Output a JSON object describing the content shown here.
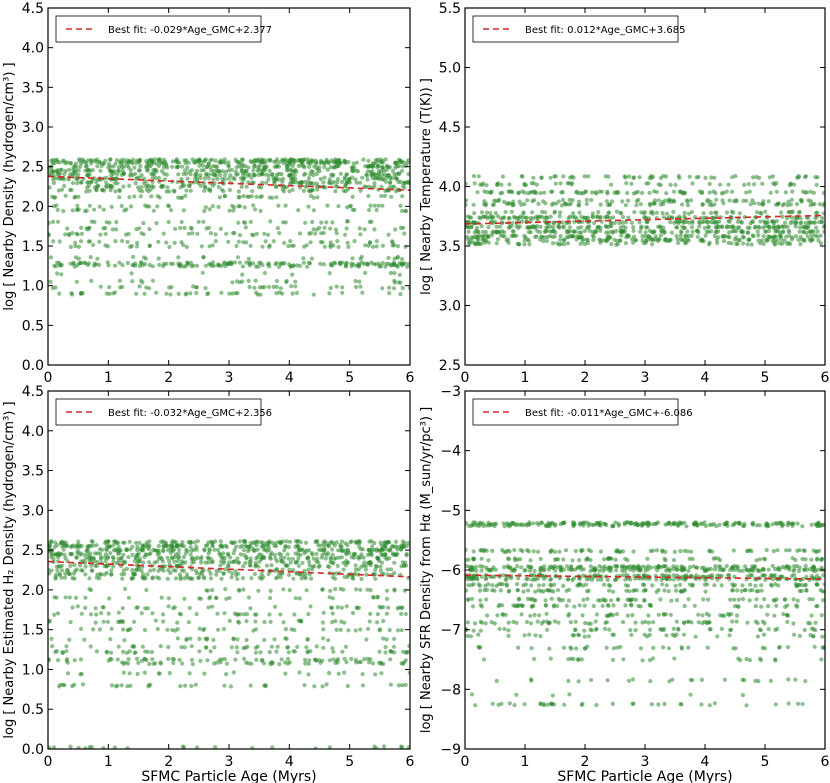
{
  "colors": {
    "points": "#2e8b2e",
    "fit": "#d62728",
    "background": "#ffffff"
  },
  "chart_data": [
    {
      "panel": "top-left",
      "type": "scatter",
      "ylabel": "log [ Nearby Density (hydrogen/cm³) ]",
      "xlabel": "",
      "xlim": [
        0,
        6
      ],
      "ylim": [
        0.0,
        4.5
      ],
      "xticks": [
        "0",
        "1",
        "2",
        "3",
        "4",
        "5",
        "6"
      ],
      "yticks": [
        "0.0",
        "0.5",
        "1.0",
        "1.5",
        "2.0",
        "2.5",
        "3.0",
        "3.5",
        "4.0",
        "4.5"
      ],
      "legend": {
        "label": "Best fit: -0.029*Age_GMC+2.377",
        "placement": "top-left"
      },
      "fit": {
        "slope": -0.029,
        "intercept": 2.377,
        "x_range": [
          0,
          6
        ]
      },
      "bands": [
        {
          "y": 2.58,
          "density": 1.0
        },
        {
          "y": 2.55,
          "density": 1.0
        },
        {
          "y": 2.5,
          "density": 0.9
        },
        {
          "y": 2.45,
          "density": 0.8
        },
        {
          "y": 2.4,
          "density": 0.9
        },
        {
          "y": 2.35,
          "density": 0.8
        },
        {
          "y": 2.3,
          "density": 0.7
        },
        {
          "y": 2.25,
          "density": 0.6
        },
        {
          "y": 2.2,
          "density": 0.5
        },
        {
          "y": 2.12,
          "density": 0.35
        },
        {
          "y": 2.0,
          "density": 0.3
        },
        {
          "y": 1.95,
          "density": 0.25
        },
        {
          "y": 1.8,
          "density": 0.25
        },
        {
          "y": 1.72,
          "density": 0.3
        },
        {
          "y": 1.65,
          "density": 0.35
        },
        {
          "y": 1.55,
          "density": 0.3
        },
        {
          "y": 1.5,
          "density": 0.35
        },
        {
          "y": 1.35,
          "density": 0.2
        },
        {
          "y": 1.28,
          "density": 0.8
        },
        {
          "y": 1.25,
          "density": 0.6
        },
        {
          "y": 1.15,
          "density": 0.1
        },
        {
          "y": 1.05,
          "density": 0.2
        },
        {
          "y": 0.98,
          "density": 0.3
        },
        {
          "y": 0.9,
          "density": 0.35
        }
      ]
    },
    {
      "panel": "top-right",
      "type": "scatter",
      "ylabel": "log [ Nearby Temperature (T(K)) ]",
      "xlabel": "",
      "xlim": [
        0,
        6
      ],
      "ylim": [
        2.5,
        5.5
      ],
      "xticks": [
        "0",
        "1",
        "2",
        "3",
        "4",
        "5",
        "6"
      ],
      "yticks": [
        "2.5",
        "3.0",
        "3.5",
        "4.0",
        "4.5",
        "5.0",
        "5.5"
      ],
      "legend": {
        "label": "Best fit: 0.012*Age_GMC+3.685",
        "placement": "top-left"
      },
      "fit": {
        "slope": 0.012,
        "intercept": 3.685,
        "x_range": [
          0,
          6
        ]
      },
      "bands": [
        {
          "y": 4.08,
          "density": 0.45
        },
        {
          "y": 4.02,
          "density": 0.4
        },
        {
          "y": 3.95,
          "density": 0.7
        },
        {
          "y": 3.88,
          "density": 0.5
        },
        {
          "y": 3.85,
          "density": 0.6
        },
        {
          "y": 3.78,
          "density": 0.5
        },
        {
          "y": 3.74,
          "density": 0.9
        },
        {
          "y": 3.7,
          "density": 1.0
        },
        {
          "y": 3.66,
          "density": 1.0
        },
        {
          "y": 3.62,
          "density": 1.0
        },
        {
          "y": 3.58,
          "density": 0.9
        },
        {
          "y": 3.55,
          "density": 0.8
        },
        {
          "y": 3.52,
          "density": 0.5
        }
      ]
    },
    {
      "panel": "bottom-left",
      "type": "scatter",
      "ylabel": "log [ Nearby Estimated H₂ Density (hydrogen/cm³) ]",
      "xlabel": "SFMC Particle Age (Myrs)",
      "xlim": [
        0,
        6
      ],
      "ylim": [
        0.0,
        4.5
      ],
      "xticks": [
        "0",
        "1",
        "2",
        "3",
        "4",
        "5",
        "6"
      ],
      "yticks": [
        "0.0",
        "0.5",
        "1.0",
        "1.5",
        "2.0",
        "2.5",
        "3.0",
        "3.5",
        "4.0",
        "4.5"
      ],
      "legend": {
        "label": "Best fit: -0.032*Age_GMC+2.356",
        "placement": "top-left"
      },
      "fit": {
        "slope": -0.032,
        "intercept": 2.356,
        "x_range": [
          0,
          6
        ]
      },
      "bands": [
        {
          "y": 2.6,
          "density": 1.0
        },
        {
          "y": 2.55,
          "density": 1.0
        },
        {
          "y": 2.5,
          "density": 0.9
        },
        {
          "y": 2.45,
          "density": 0.8
        },
        {
          "y": 2.4,
          "density": 0.8
        },
        {
          "y": 2.35,
          "density": 0.7
        },
        {
          "y": 2.3,
          "density": 0.6
        },
        {
          "y": 2.25,
          "density": 0.5
        },
        {
          "y": 2.2,
          "density": 0.6
        },
        {
          "y": 2.15,
          "density": 0.5
        },
        {
          "y": 2.0,
          "density": 0.25
        },
        {
          "y": 1.9,
          "density": 0.25
        },
        {
          "y": 1.78,
          "density": 0.3
        },
        {
          "y": 1.7,
          "density": 0.3
        },
        {
          "y": 1.6,
          "density": 0.3
        },
        {
          "y": 1.5,
          "density": 0.3
        },
        {
          "y": 1.38,
          "density": 0.25
        },
        {
          "y": 1.28,
          "density": 0.3
        },
        {
          "y": 1.22,
          "density": 0.35
        },
        {
          "y": 1.12,
          "density": 0.45
        },
        {
          "y": 1.08,
          "density": 0.4
        },
        {
          "y": 0.95,
          "density": 0.2
        },
        {
          "y": 0.8,
          "density": 0.3
        },
        {
          "y": 0.02,
          "density": 0.2
        }
      ]
    },
    {
      "panel": "bottom-right",
      "type": "scatter",
      "ylabel": "log [ Nearby SFR Density from Hα (M_sun/yr/pc³) ]",
      "xlabel": "SFMC Particle Age (Myrs)",
      "xlim": [
        0,
        6
      ],
      "ylim": [
        -9,
        -3
      ],
      "xticks": [
        "0",
        "1",
        "2",
        "3",
        "4",
        "5",
        "6"
      ],
      "yticks": [
        "−9",
        "−8",
        "−7",
        "−6",
        "−5",
        "−4",
        "−3"
      ],
      "legend": {
        "label": "Best fit: -0.011*Age_GMC+-6.086",
        "placement": "top-left"
      },
      "fit": {
        "slope": -0.011,
        "intercept": -6.086,
        "x_range": [
          0,
          6
        ]
      },
      "bands": [
        {
          "y": -5.22,
          "density": 1.0
        },
        {
          "y": -5.25,
          "density": 0.8
        },
        {
          "y": -5.68,
          "density": 0.6
        },
        {
          "y": -5.82,
          "density": 0.5
        },
        {
          "y": -5.95,
          "density": 1.0
        },
        {
          "y": -6.0,
          "density": 1.0
        },
        {
          "y": -6.1,
          "density": 0.9
        },
        {
          "y": -6.15,
          "density": 0.8
        },
        {
          "y": -6.25,
          "density": 0.6
        },
        {
          "y": -6.35,
          "density": 0.55
        },
        {
          "y": -6.5,
          "density": 0.5
        },
        {
          "y": -6.6,
          "density": 0.45
        },
        {
          "y": -6.75,
          "density": 0.4
        },
        {
          "y": -6.88,
          "density": 0.5
        },
        {
          "y": -7.0,
          "density": 0.35
        },
        {
          "y": -7.1,
          "density": 0.3
        },
        {
          "y": -7.3,
          "density": 0.3
        },
        {
          "y": -7.5,
          "density": 0.2
        },
        {
          "y": -7.85,
          "density": 0.2
        },
        {
          "y": -8.1,
          "density": 0.05
        },
        {
          "y": -8.25,
          "density": 0.3
        }
      ]
    }
  ]
}
